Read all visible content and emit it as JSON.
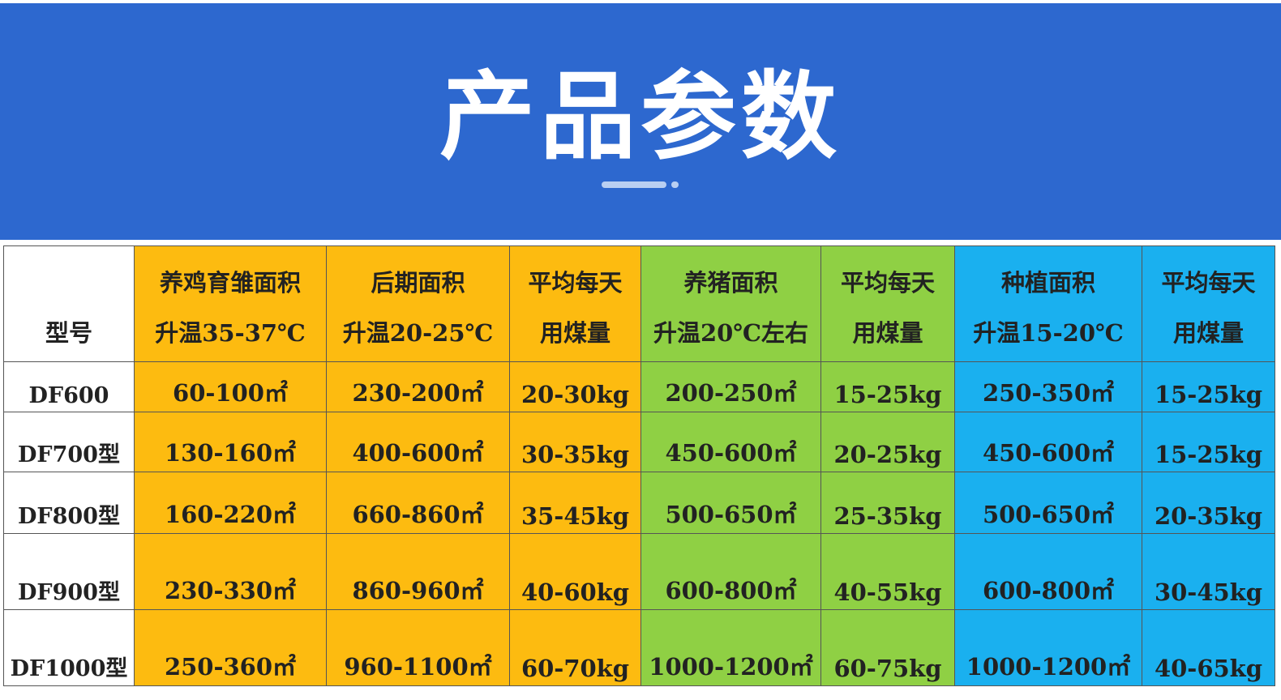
{
  "title": "产品参数",
  "colors": {
    "banner": "#2d68cf",
    "poultry": "#fdbb10",
    "pig": "#8fd044",
    "planting": "#1ab0ef"
  },
  "headers": [
    [
      "型号",
      ""
    ],
    [
      "养鸡育雏面积",
      "升温35-37℃"
    ],
    [
      "后期面积",
      "升温20-25℃"
    ],
    [
      "平均每天",
      "用煤量"
    ],
    [
      "养猪面积",
      "升温20℃左右"
    ],
    [
      "平均每天",
      "用煤量"
    ],
    [
      "种植面积",
      "升温15-20℃"
    ],
    [
      "平均每天",
      "用煤量"
    ]
  ],
  "rows": [
    [
      "DF600",
      "60-100㎡",
      "230-200㎡",
      "20-30kg",
      "200-250㎡",
      "15-25kg",
      "250-350㎡",
      "15-25kg"
    ],
    [
      "DF700型",
      "130-160㎡",
      "400-600㎡",
      "30-35kg",
      "450-600㎡",
      "20-25kg",
      "450-600㎡",
      "15-25kg"
    ],
    [
      "DF800型",
      "160-220㎡",
      "660-860㎡",
      "35-45kg",
      "500-650㎡",
      "25-35kg",
      "500-650㎡",
      "20-35kg"
    ],
    [
      "DF900型",
      "230-330㎡",
      "860-960㎡",
      "40-60kg",
      "600-800㎡",
      "40-55kg",
      "600-800㎡",
      "30-45kg"
    ],
    [
      "DF1000型",
      "250-360㎡",
      "960-1100㎡",
      "60-70kg",
      "1000-1200㎡",
      "60-75kg",
      "1000-1200㎡",
      "40-65kg"
    ]
  ]
}
